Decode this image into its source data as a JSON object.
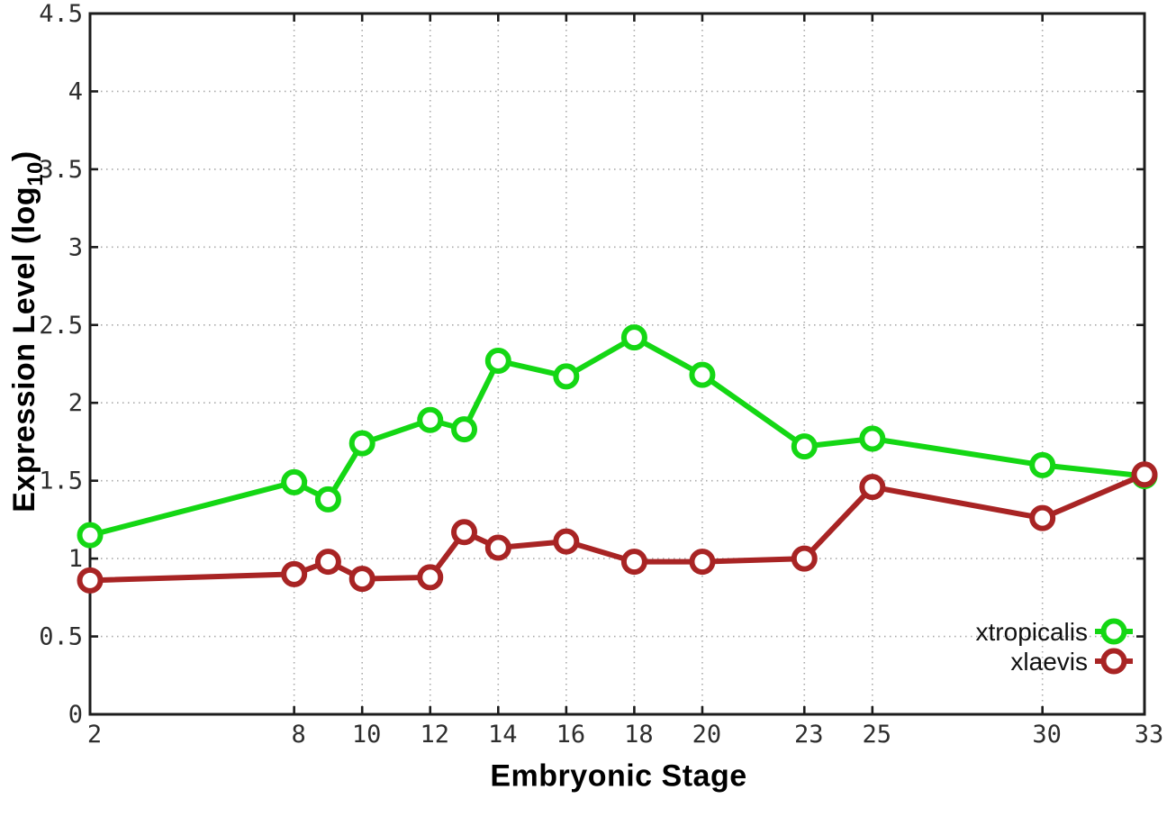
{
  "labels": {
    "xlabel": "Embryonic Stage",
    "ylabel_prefix": "Expression Level (log",
    "ylabel_sub": "10",
    "ylabel_suffix": ")"
  },
  "chart_data": {
    "type": "line",
    "title": "",
    "xlabel": "Embryonic Stage",
    "ylabel": "Expression Level (log10)",
    "x": [
      2,
      8,
      9,
      10,
      12,
      13,
      14,
      16,
      18,
      20,
      23,
      25,
      30,
      33
    ],
    "series": [
      {
        "name": "xtropicalis",
        "color": "#14d714",
        "values": [
          1.15,
          1.49,
          1.38,
          1.74,
          1.89,
          1.83,
          2.27,
          2.17,
          2.42,
          2.18,
          1.72,
          1.77,
          1.6,
          1.53
        ]
      },
      {
        "name": "xlaevis",
        "color": "#a82424",
        "values": [
          0.86,
          0.9,
          0.98,
          0.87,
          0.88,
          1.17,
          1.07,
          1.11,
          0.98,
          0.98,
          1.0,
          1.46,
          1.26,
          1.54
        ]
      }
    ],
    "x_ticks": [
      2,
      8,
      10,
      12,
      14,
      16,
      18,
      20,
      23,
      25,
      30,
      33
    ],
    "y_ticks": [
      0,
      0.5,
      1,
      1.5,
      2,
      2.5,
      3,
      3.5,
      4,
      4.5
    ],
    "xlim": [
      2,
      33
    ],
    "ylim": [
      0,
      4.5
    ],
    "grid": true,
    "marker": "open-circle",
    "legend_position": "inside-right",
    "colors": {
      "border": "#1c1c1c",
      "grid": "#aaaaaa",
      "tick_text": "#2e2e2e"
    }
  }
}
